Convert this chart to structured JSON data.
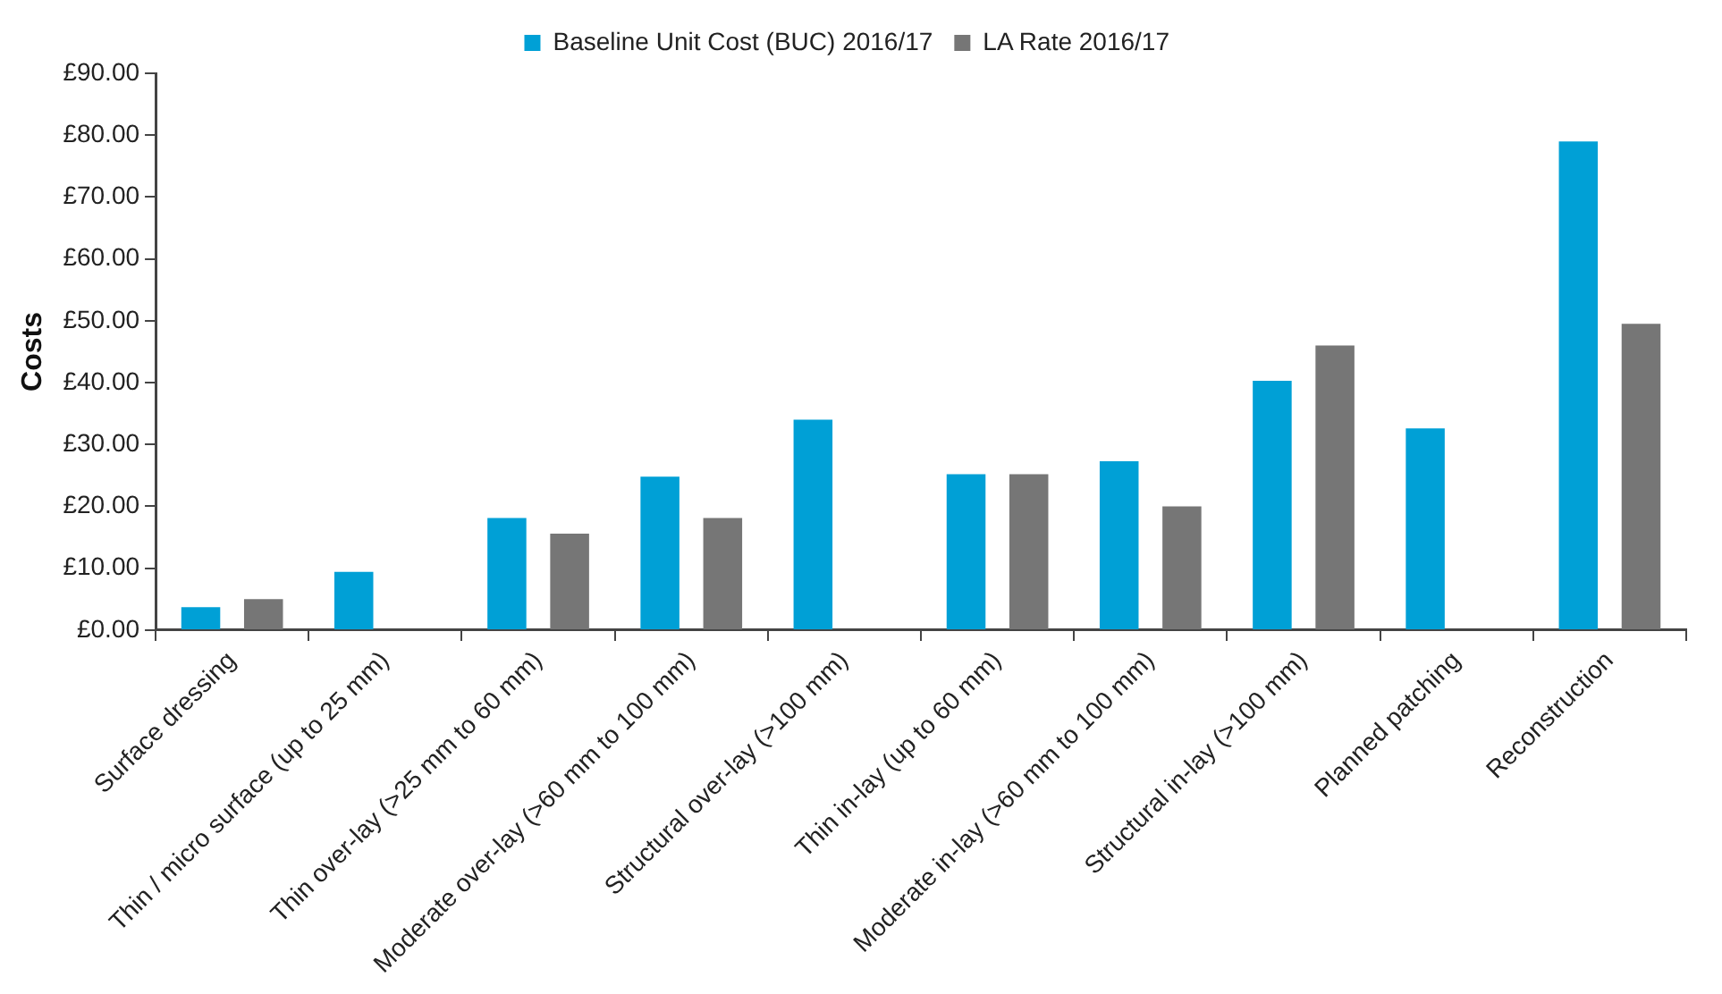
{
  "chart_data": {
    "type": "bar",
    "ylabel": "Costs",
    "categories": [
      "Surface dressing",
      "Thin / micro surface (up to 25 mm)",
      "Thin over-lay (>25 mm to 60 mm)",
      "Moderate over-lay (>60 mm to 100 mm)",
      "Structural over-lay (>100 mm)",
      "Thin in-lay (up to 60 mm)",
      "Moderate in-lay (>60 mm to 100 mm)",
      "Structural in-lay (>100 mm)",
      "Planned patching",
      "Reconstruction"
    ],
    "series": [
      {
        "name": "Baseline Unit Cost (BUC) 2016/17",
        "color": "#00a0d6",
        "values": [
          3.7,
          9.4,
          18.1,
          24.8,
          34.0,
          25.2,
          27.3,
          40.3,
          32.6,
          79.0
        ]
      },
      {
        "name": "LA Rate 2016/17",
        "color": "#767676",
        "values": [
          5.0,
          null,
          15.6,
          18.1,
          null,
          25.2,
          20.0,
          46.0,
          null,
          49.5
        ]
      }
    ],
    "ylim": [
      0,
      90
    ],
    "yticks": [
      {
        "value": 0,
        "label": "£0.00"
      },
      {
        "value": 10,
        "label": "£10.00"
      },
      {
        "value": 20,
        "label": "£20.00"
      },
      {
        "value": 30,
        "label": "£30.00"
      },
      {
        "value": 40,
        "label": "£40.00"
      },
      {
        "value": 50,
        "label": "£50.00"
      },
      {
        "value": 60,
        "label": "£60.00"
      },
      {
        "value": 70,
        "label": "£70.00"
      },
      {
        "value": 80,
        "label": "£80.00"
      },
      {
        "value": 90,
        "label": "£90.00"
      }
    ],
    "grid": false,
    "legend": "top"
  }
}
